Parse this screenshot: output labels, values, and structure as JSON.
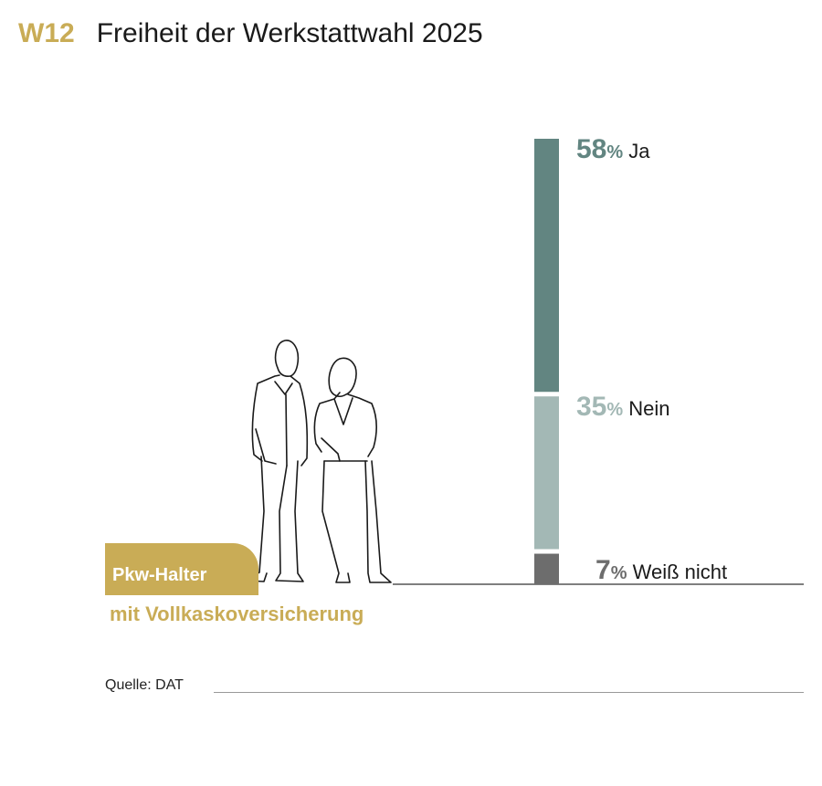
{
  "header": {
    "code": "W12",
    "title": "Freiheit der Werkstattwahl 2025"
  },
  "colors": {
    "accent": "#c9ac56",
    "ja": "#628581",
    "nein": "#a3b8b5",
    "weiss_nicht": "#6d6d6d",
    "baseline": "#333333"
  },
  "illustration": {
    "icon": "two-people-outline-icon"
  },
  "badge": {
    "line1": "Pkw-Halter",
    "line2": "mit Vollkaskoversicherung"
  },
  "source": {
    "text": "Quelle: DAT"
  },
  "chart_data": {
    "type": "bar",
    "stacked": true,
    "title": "Freiheit der Werkstattwahl 2025",
    "categories": [
      "Pkw-Halter mit Vollkaskoversicherung"
    ],
    "unit": "%",
    "series": [
      {
        "name": "Ja",
        "value": 58,
        "label": "58"
      },
      {
        "name": "Nein",
        "value": 35,
        "label": "35"
      },
      {
        "name": "Weiß nicht",
        "value": 7,
        "label": "7"
      }
    ],
    "ylim": [
      0,
      100
    ],
    "grid": false,
    "legend": "inline-right"
  }
}
